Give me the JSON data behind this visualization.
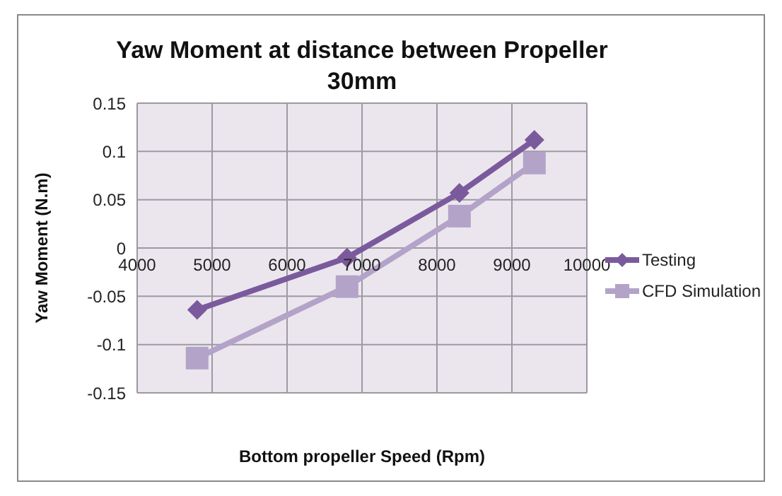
{
  "chart_data": {
    "type": "line",
    "title": "Yaw Moment at distance between Propeller 30mm",
    "xlabel": "Bottom propeller Speed (Rpm)",
    "ylabel": "Yaw Moment (N.m)",
    "series": [
      {
        "name": "Testing",
        "color": "#7a5a9c",
        "marker": "diamond",
        "x": [
          4800,
          6800,
          8300,
          9300
        ],
        "values": [
          -0.064,
          -0.01,
          0.057,
          0.112
        ]
      },
      {
        "name": "CFD Simulation",
        "color": "#b3a3c8",
        "marker": "square",
        "x": [
          4800,
          6800,
          8300,
          9300
        ],
        "values": [
          -0.114,
          -0.04,
          0.033,
          0.088
        ]
      }
    ],
    "xlim": [
      4000,
      10000
    ],
    "xticks": [
      4000,
      5000,
      6000,
      7000,
      8000,
      9000,
      10000
    ],
    "ylim": [
      -0.15,
      0.15
    ],
    "yticks": [
      -0.15,
      -0.1,
      -0.05,
      0,
      0.05,
      0.1,
      0.15
    ],
    "grid": true,
    "legend": "right"
  }
}
